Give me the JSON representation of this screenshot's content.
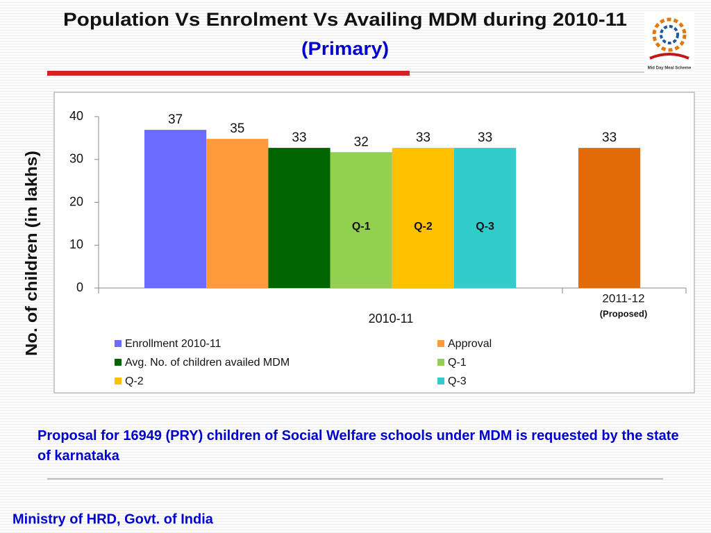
{
  "chart_data": {
    "type": "bar",
    "title": "Population Vs Enrolment Vs Availing MDM during  2010-11",
    "subtitle": "(Primary)",
    "ylabel": "No. of children (in lakhs)",
    "categories": [
      "2010-11",
      "2011-12"
    ],
    "category_notes": [
      null,
      "(Proposed)"
    ],
    "ylim": [
      0,
      40
    ],
    "yticks": [
      0,
      10,
      20,
      30,
      40
    ],
    "series": [
      {
        "name": "Enrollment 2010-11",
        "color": "#6b6bff",
        "values": [
          36.9,
          null
        ],
        "value_labels": [
          "37",
          null
        ]
      },
      {
        "name": "Approval",
        "color": "#ff9a3c",
        "values": [
          34.8,
          null
        ],
        "value_labels": [
          "35",
          null
        ]
      },
      {
        "name": "Avg. No. of children availed MDM",
        "color": "#006400",
        "values": [
          32.7,
          null
        ],
        "value_labels": [
          "33",
          null
        ]
      },
      {
        "name": "Q-1",
        "color": "#92d050",
        "values": [
          31.7,
          null
        ],
        "value_labels": [
          "32",
          null
        ],
        "inner_label": true
      },
      {
        "name": "Q-2",
        "color": "#ffc000",
        "values": [
          32.7,
          null
        ],
        "value_labels": [
          "33",
          null
        ],
        "inner_label": true
      },
      {
        "name": "Q-3",
        "color": "#33cccc",
        "values": [
          32.7,
          null
        ],
        "value_labels": [
          "33",
          null
        ],
        "inner_label": true
      },
      {
        "color": "#e36c09",
        "values": [
          null,
          32.7
        ],
        "value_labels": [
          null,
          "33"
        ]
      }
    ]
  },
  "footnote": "Proposal  for 16949  (PRY)  children of Social Welfare schools under MDM is requested by the state of karnataka",
  "footer": "Ministry of HRD, Govt. of India",
  "logo_caption": "Mid Day Meal Scheme"
}
